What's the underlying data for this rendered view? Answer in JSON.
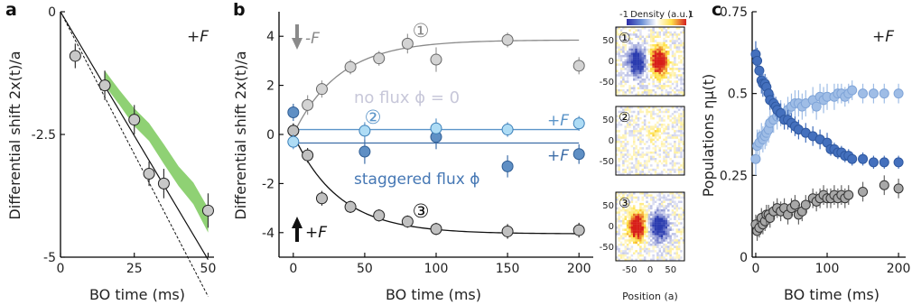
{
  "colors": {
    "axis": "#000000",
    "green_band": "#8fd174",
    "no_flux_text": "#c7c7d9",
    "staggered_text": "#4577b4",
    "flux_line": "#5b95c9",
    "up_point_light": "#aedcf5",
    "up_point_dark": "#5f8fc4",
    "no_flux_point": "#d0d0d0",
    "down_point": "#bdbdbd",
    "eta_dark": "#4470bd",
    "eta_light": "#9fbde6",
    "eta_gray": "#a0a0a0",
    "fit_gray": "#8a8a8a",
    "fit_black": "#111111"
  },
  "panels": {
    "a": {
      "letter": "a",
      "annotation": "+F"
    },
    "b": {
      "letter": "b",
      "annotation_minus": "-F",
      "annotation_plus": "+F",
      "label_no_flux": "no flux ϕ = 0",
      "label_staggered": "staggered flux ϕ",
      "label_plus_upper": "+F",
      "label_plus_lower": "+F",
      "circle_1": "①",
      "circle_2": "②",
      "circle_3": "③",
      "colorbar_title": "Density (a.u.)",
      "colorbar_min": "-1",
      "colorbar_max": "1",
      "heatmap_xlabel": "Position (a)",
      "heatmap_xticks": [
        "-50",
        "0",
        "50"
      ],
      "heatmap_yticks": [
        "50",
        "0",
        "-50"
      ]
    },
    "c": {
      "letter": "c",
      "annotation": "+F"
    }
  },
  "chart_data": [
    {
      "id": "a",
      "type": "scatter",
      "xlabel": "BO time (ms)",
      "ylabel": "Differential shift 2x(t)/a",
      "xlim": [
        0,
        52
      ],
      "ylim": [
        -5,
        0
      ],
      "xticks": [
        0,
        25,
        50
      ],
      "yticks": [
        0,
        -2.5,
        -5
      ],
      "ytick_labels": [
        "0",
        "-2.5",
        "-5"
      ],
      "series": [
        {
          "kind": "points",
          "x": [
            5,
            15,
            25,
            30,
            35,
            50
          ],
          "y": [
            -0.9,
            -1.5,
            -2.2,
            -3.3,
            -3.5,
            -4.05
          ],
          "yerr": [
            0.25,
            0.3,
            0.3,
            0.25,
            0.3,
            0.35
          ]
        },
        {
          "kind": "band",
          "x": [
            15,
            20,
            25,
            30,
            35,
            40,
            45,
            50
          ],
          "y": [
            -1.35,
            -1.75,
            -2.15,
            -2.45,
            -2.9,
            -3.35,
            -3.7,
            -4.25
          ],
          "width": [
            0.15,
            0.15,
            0.18,
            0.18,
            0.2,
            0.2,
            0.22,
            0.25
          ]
        },
        {
          "kind": "line",
          "style": "solid",
          "x": [
            0,
            50
          ],
          "y": [
            0,
            -5.05
          ]
        },
        {
          "kind": "line",
          "style": "dashed",
          "x": [
            0,
            50
          ],
          "y": [
            0,
            -5.8
          ]
        }
      ]
    },
    {
      "id": "b",
      "type": "scatter",
      "xlabel": "BO time (ms)",
      "ylabel": "Differential shift 2x(t)/a",
      "xlim": [
        -10,
        210
      ],
      "ylim": [
        -5,
        5
      ],
      "xticks": [
        0,
        50,
        100,
        150,
        200
      ],
      "yticks": [
        4,
        2,
        0,
        -2,
        -4
      ],
      "series": [
        {
          "name": "minusF",
          "x": [
            0,
            10,
            20,
            40,
            60,
            80,
            100,
            150,
            200
          ],
          "y": [
            0.15,
            1.2,
            1.85,
            2.75,
            3.1,
            3.7,
            3.05,
            3.85,
            2.8
          ],
          "yerr": [
            0.3,
            0.4,
            0.35,
            0.3,
            0.3,
            0.4,
            0.5,
            0.3,
            0.35
          ]
        },
        {
          "name": "plusF",
          "x": [
            0,
            10,
            20,
            40,
            60,
            80,
            100,
            150,
            200
          ],
          "y": [
            0.15,
            -0.85,
            -2.6,
            -2.95,
            -3.3,
            -3.55,
            -3.85,
            -3.95,
            -3.9
          ],
          "yerr": [
            0.3,
            0.3,
            0.3,
            0.25,
            0.25,
            0.25,
            0.25,
            0.3,
            0.3
          ]
        },
        {
          "name": "stagUpper",
          "x": [
            0,
            50,
            100,
            150,
            200
          ],
          "y": [
            -0.3,
            0.15,
            0.25,
            0.2,
            0.45
          ],
          "yerr": [
            0.3,
            0.35,
            0.4,
            0.3,
            0.3
          ]
        },
        {
          "name": "stagLower",
          "x": [
            0,
            50,
            100,
            150,
            200
          ],
          "y": [
            0.9,
            -0.7,
            -0.1,
            -1.3,
            -0.8
          ],
          "yerr": [
            0.35,
            0.5,
            0.5,
            0.45,
            0.4
          ]
        }
      ],
      "fits": {
        "upper_asymptote": 3.85,
        "lower_asymptote": -4.05,
        "tau_ms": 32,
        "flat_upper": 0.2,
        "flat_lower": -0.35
      }
    },
    {
      "id": "c",
      "type": "scatter",
      "xlabel": "BO time (ms)",
      "ylabel": "Populations ημ(t)",
      "xlim": [
        -5,
        210
      ],
      "ylim": [
        0,
        0.75
      ],
      "xticks": [
        0,
        100,
        200
      ],
      "yticks": [
        0,
        0.25,
        0.5,
        0.75
      ],
      "series": [
        {
          "name": "dark",
          "x": [
            0,
            2,
            5,
            8,
            10,
            13,
            15,
            18,
            20,
            25,
            28,
            30,
            35,
            40,
            45,
            50,
            55,
            60,
            70,
            80,
            90,
            100,
            105,
            110,
            115,
            120,
            125,
            130,
            135,
            150,
            165,
            180,
            200
          ],
          "y": [
            0.62,
            0.6,
            0.57,
            0.54,
            0.53,
            0.53,
            0.52,
            0.5,
            0.48,
            0.47,
            0.46,
            0.45,
            0.44,
            0.42,
            0.42,
            0.41,
            0.4,
            0.39,
            0.38,
            0.37,
            0.36,
            0.35,
            0.33,
            0.33,
            0.32,
            0.32,
            0.31,
            0.31,
            0.3,
            0.3,
            0.29,
            0.29,
            0.29
          ],
          "yerr": [
            0.04,
            0.04,
            0.04,
            0.04,
            0.04,
            0.03,
            0.03,
            0.03,
            0.03,
            0.03,
            0.03,
            0.03,
            0.03,
            0.03,
            0.03,
            0.03,
            0.03,
            0.03,
            0.03,
            0.03,
            0.03,
            0.03,
            0.02,
            0.02,
            0.02,
            0.02,
            0.02,
            0.02,
            0.02,
            0.02,
            0.02,
            0.02,
            0.02
          ]
        },
        {
          "name": "light",
          "x": [
            0,
            2,
            5,
            8,
            10,
            13,
            15,
            18,
            20,
            25,
            30,
            35,
            40,
            45,
            50,
            55,
            60,
            65,
            70,
            80,
            85,
            90,
            95,
            100,
            110,
            115,
            120,
            125,
            130,
            135,
            150,
            165,
            180,
            200
          ],
          "y": [
            0.3,
            0.34,
            0.35,
            0.37,
            0.36,
            0.37,
            0.38,
            0.39,
            0.41,
            0.42,
            0.43,
            0.44,
            0.43,
            0.45,
            0.46,
            0.47,
            0.47,
            0.46,
            0.47,
            0.48,
            0.46,
            0.49,
            0.48,
            0.49,
            0.49,
            0.5,
            0.5,
            0.49,
            0.5,
            0.51,
            0.5,
            0.5,
            0.5,
            0.5
          ],
          "yerr": [
            0.05,
            0.05,
            0.04,
            0.04,
            0.04,
            0.04,
            0.04,
            0.04,
            0.04,
            0.04,
            0.04,
            0.04,
            0.04,
            0.04,
            0.04,
            0.04,
            0.04,
            0.04,
            0.04,
            0.04,
            0.04,
            0.04,
            0.04,
            0.04,
            0.04,
            0.03,
            0.03,
            0.03,
            0.03,
            0.03,
            0.03,
            0.03,
            0.03,
            0.03
          ]
        },
        {
          "name": "gray",
          "x": [
            0,
            2,
            5,
            8,
            10,
            13,
            15,
            18,
            20,
            25,
            30,
            35,
            40,
            45,
            50,
            55,
            60,
            65,
            70,
            80,
            85,
            90,
            95,
            100,
            105,
            110,
            115,
            120,
            125,
            130,
            150,
            180,
            200
          ],
          "y": [
            0.1,
            0.08,
            0.09,
            0.12,
            0.1,
            0.11,
            0.13,
            0.13,
            0.12,
            0.14,
            0.15,
            0.14,
            0.15,
            0.13,
            0.15,
            0.16,
            0.13,
            0.14,
            0.16,
            0.18,
            0.17,
            0.18,
            0.19,
            0.18,
            0.18,
            0.19,
            0.18,
            0.19,
            0.18,
            0.19,
            0.2,
            0.22,
            0.21
          ],
          "yerr": [
            0.03,
            0.03,
            0.03,
            0.03,
            0.03,
            0.03,
            0.03,
            0.03,
            0.03,
            0.03,
            0.03,
            0.03,
            0.03,
            0.03,
            0.03,
            0.03,
            0.03,
            0.03,
            0.03,
            0.03,
            0.03,
            0.03,
            0.03,
            0.03,
            0.03,
            0.03,
            0.03,
            0.03,
            0.03,
            0.03,
            0.03,
            0.03,
            0.03
          ]
        }
      ]
    }
  ]
}
